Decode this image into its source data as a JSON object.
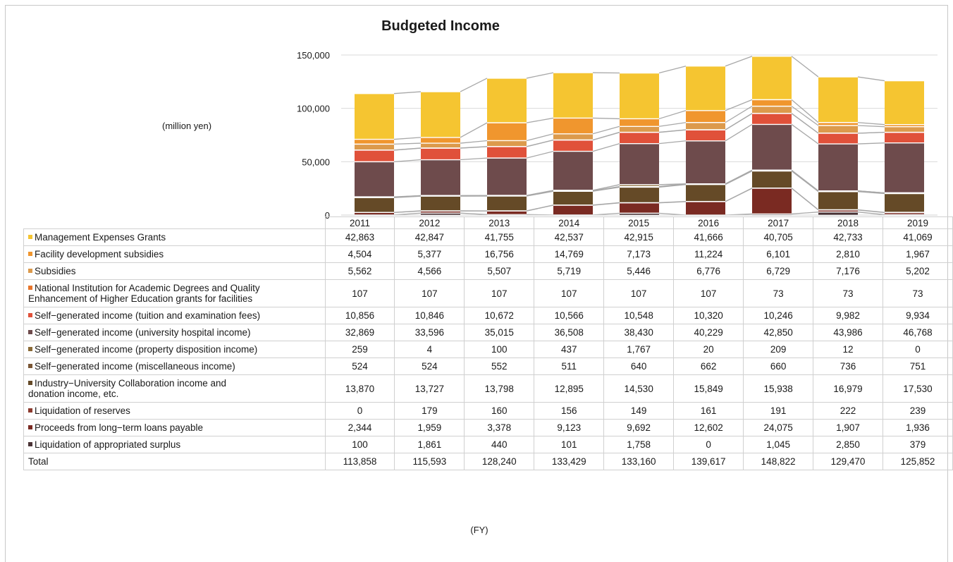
{
  "chart_data": {
    "type": "bar",
    "stacked": true,
    "title": "Budgeted Income",
    "unit_label": "(million yen)",
    "xlabel": "(FY)",
    "ylim": [
      0,
      150000
    ],
    "yticks": [
      "0",
      "50,000",
      "100,000",
      "150,000"
    ],
    "ytick_values": [
      0,
      50000,
      100000,
      150000
    ],
    "categories": [
      "2011",
      "2012",
      "2013",
      "2014",
      "2015",
      "2016",
      "2017",
      "2018",
      "2019"
    ],
    "series": [
      {
        "name": "Management Expenses Grants",
        "color": "#f5c531",
        "values": [
          42863,
          42847,
          41755,
          42537,
          42915,
          41666,
          40705,
          42733,
          41069
        ],
        "labels": [
          "42,863",
          "42,847",
          "41,755",
          "42,537",
          "42,915",
          "41,666",
          "40,705",
          "42,733",
          "41,069"
        ]
      },
      {
        "name": "Facility development subsidies",
        "color": "#f0962e",
        "values": [
          4504,
          5377,
          16756,
          14769,
          7173,
          11224,
          6101,
          2810,
          1967
        ],
        "labels": [
          "4,504",
          "5,377",
          "16,756",
          "14,769",
          "7,173",
          "11,224",
          "6,101",
          "2,810",
          "1,967"
        ]
      },
      {
        "name": "Subsidies",
        "color": "#dc9a4c",
        "values": [
          5562,
          4566,
          5507,
          5719,
          5446,
          6776,
          6729,
          7176,
          5202
        ],
        "labels": [
          "5,562",
          "4,566",
          "5,507",
          "5,719",
          "5,446",
          "6,776",
          "6,729",
          "7,176",
          "5,202"
        ]
      },
      {
        "name": "National Institution for Academic Degrees and Quality Enhancement of Higher Education grants for facilities",
        "color": "#e8752b",
        "values": [
          107,
          107,
          107,
          107,
          107,
          107,
          73,
          73,
          73
        ],
        "labels": [
          "107",
          "107",
          "107",
          "107",
          "107",
          "107",
          "73",
          "73",
          "73"
        ]
      },
      {
        "name": "Self-generated income (tuition and examination fees)",
        "color": "#e0513a",
        "values": [
          10856,
          10846,
          10672,
          10566,
          10548,
          10320,
          10246,
          9982,
          9934
        ],
        "labels": [
          "10,856",
          "10,846",
          "10,672",
          "10,566",
          "10,548",
          "10,320",
          "10,246",
          "9,982",
          "9,934"
        ]
      },
      {
        "name": "Self-generated income (university hospital income)",
        "color": "#6e4b4c",
        "values": [
          32869,
          33596,
          35015,
          36508,
          38430,
          40229,
          42850,
          43986,
          46768
        ],
        "labels": [
          "32,869",
          "33,596",
          "35,015",
          "36,508",
          "38,430",
          "40,229",
          "42,850",
          "43,986",
          "46,768"
        ]
      },
      {
        "name": "Self-generated income (property disposition income)",
        "color": "#8a6a36",
        "values": [
          259,
          4,
          100,
          437,
          1767,
          20,
          209,
          12,
          0
        ],
        "labels": [
          "259",
          "4",
          "100",
          "437",
          "1,767",
          "20",
          "209",
          "12",
          "0"
        ]
      },
      {
        "name": "Self-generated income (miscellaneous income)",
        "color": "#7a5634",
        "values": [
          524,
          524,
          552,
          511,
          640,
          662,
          660,
          736,
          751
        ],
        "labels": [
          "524",
          "524",
          "552",
          "511",
          "640",
          "662",
          "660",
          "736",
          "751"
        ]
      },
      {
        "name": "Industry-University Collaboration income and donation income, etc.",
        "color": "#654a27",
        "values": [
          13870,
          13727,
          13798,
          12895,
          14530,
          15849,
          15938,
          16979,
          17530
        ],
        "labels": [
          "13,870",
          "13,727",
          "13,798",
          "12,895",
          "14,530",
          "15,849",
          "15,938",
          "16,979",
          "17,530"
        ]
      },
      {
        "name": "Liquidation of reserves",
        "color": "#8c3a2e",
        "values": [
          0,
          179,
          160,
          156,
          149,
          161,
          191,
          222,
          239
        ],
        "labels": [
          "0",
          "179",
          "160",
          "156",
          "149",
          "161",
          "191",
          "222",
          "239"
        ]
      },
      {
        "name": "Proceeds from long-term loans payable",
        "color": "#7a2a22",
        "values": [
          2344,
          1959,
          3378,
          9123,
          9692,
          12602,
          24075,
          1907,
          1936
        ],
        "labels": [
          "2,344",
          "1,959",
          "3,378",
          "9,123",
          "9,692",
          "12,602",
          "24,075",
          "1,907",
          "1,936"
        ]
      },
      {
        "name": "Liquidation of appropriated surplus",
        "color": "#4a3336",
        "values": [
          100,
          1861,
          440,
          101,
          1758,
          0,
          1045,
          2850,
          379
        ],
        "labels": [
          "100",
          "1,861",
          "440",
          "101",
          "1,758",
          "0",
          "1,045",
          "2,850",
          "379"
        ]
      }
    ],
    "total": {
      "name": "Total",
      "labels": [
        "113,858",
        "115,593",
        "128,240",
        "133,429",
        "133,160",
        "139,617",
        "148,822",
        "129,470",
        "125,852"
      ]
    },
    "table_label_lines": {
      "Management Expenses Grants": [
        "Management Expenses Grants"
      ],
      "Facility development subsidies": [
        "Facility development subsidies"
      ],
      "Subsidies": [
        "Subsidies"
      ],
      "National Institution for Academic Degrees and Quality Enhancement of Higher Education grants for facilities": [
        "National Institution for Academic Degrees and Quality",
        "Enhancement of Higher Education grants for facilities"
      ],
      "Self-generated income (tuition and examination fees)": [
        "Self−generated income (tuition and examination fees)"
      ],
      "Self-generated income (university hospital income)": [
        "Self−generated income (university hospital income)"
      ],
      "Self-generated income (property disposition income)": [
        "Self−generated income (property disposition income)"
      ],
      "Self-generated income (miscellaneous income)": [
        "Self−generated income (miscellaneous income)"
      ],
      "Industry-University Collaboration income and donation income, etc.": [
        "Industry−University Collaboration income and",
        "donation income, etc."
      ],
      "Liquidation of reserves": [
        "Liquidation of reserves"
      ],
      "Proceeds from long-term loans payable": [
        "Proceeds from long−term loans payable"
      ],
      "Liquidation of appropriated surplus": [
        "Liquidation of appropriated surplus"
      ]
    }
  }
}
